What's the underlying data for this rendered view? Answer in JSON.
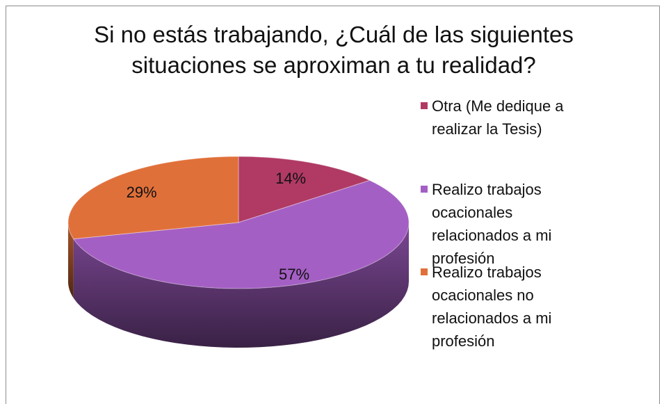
{
  "chart_data": {
    "type": "pie3d",
    "title": "Si no estás trabajando, ¿Cuál de las siguientes situaciones se aproximan a tu realidad?",
    "categories": [
      "Otra (Me dedique a realizar la Tesis)",
      "Realizo trabajos ocacionales relacionados a mi profesión",
      "Realizo trabajos ocacionales no relacionados a mi profesión"
    ],
    "values": [
      14,
      57,
      29
    ],
    "value_labels": [
      "14%",
      "57%",
      "29%"
    ],
    "colors": [
      "#b03a64",
      "#a45fc4",
      "#e0703a"
    ],
    "legend": "right"
  }
}
